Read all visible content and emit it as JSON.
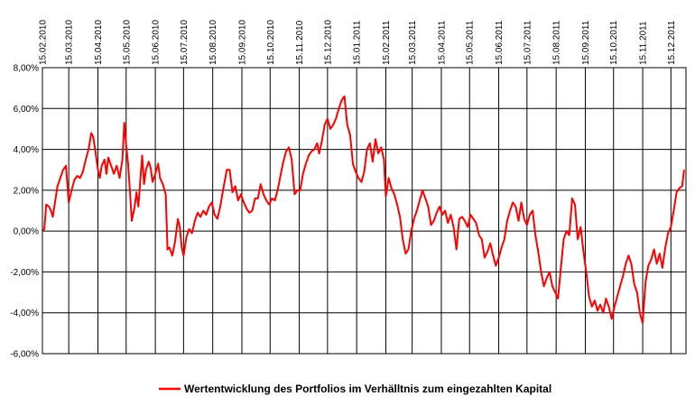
{
  "chart_data": {
    "type": "line",
    "title": "",
    "xlabel": "",
    "ylabel": "",
    "x_ticks": [
      "15.02.2010",
      "15.03.2010",
      "15.04.2010",
      "15.05.2010",
      "15.06.2010",
      "15.07.2010",
      "15.08.2010",
      "15.09.2010",
      "15.10.2010",
      "15.11.2010",
      "15.12.2010",
      "15.01.2011",
      "15.02.2011",
      "15.03.2011",
      "15.04.2011",
      "15.05.2011",
      "15.06.2011",
      "15.07.2011",
      "15.08.2011",
      "15.09.2011",
      "15.10.2011",
      "15.11.2011",
      "15.12.2011"
    ],
    "x_range": [
      "2010-02-15",
      "2011-12-31"
    ],
    "y_ticks": [
      "8,00%",
      "6,00%",
      "4,00%",
      "2,00%",
      "0,00%",
      "-2,00%",
      "-4,00%",
      "-6,00%"
    ],
    "ylim": [
      -6,
      8
    ],
    "y_unit": "%",
    "grid": {
      "x": true,
      "y": true
    },
    "legend_position": "bottom-center",
    "series": [
      {
        "name": "Wertentwicklung des Portfolios im Verhälltnis zum eingezahlten Kapital",
        "color": "#ff0000",
        "points": [
          [
            "2010-02-15",
            0.0
          ],
          [
            "2010-02-17",
            0.1
          ],
          [
            "2010-02-19",
            1.3
          ],
          [
            "2010-02-22",
            1.2
          ],
          [
            "2010-02-24",
            1.0
          ],
          [
            "2010-02-26",
            0.7
          ],
          [
            "2010-03-01",
            1.6
          ],
          [
            "2010-03-03",
            2.2
          ],
          [
            "2010-03-06",
            2.6
          ],
          [
            "2010-03-09",
            3.0
          ],
          [
            "2010-03-12",
            3.2
          ],
          [
            "2010-03-14",
            2.0
          ],
          [
            "2010-03-15",
            1.4
          ],
          [
            "2010-03-18",
            2.0
          ],
          [
            "2010-03-21",
            2.5
          ],
          [
            "2010-03-24",
            2.7
          ],
          [
            "2010-03-27",
            2.6
          ],
          [
            "2010-03-30",
            2.9
          ],
          [
            "2010-04-02",
            3.5
          ],
          [
            "2010-04-05",
            4.0
          ],
          [
            "2010-04-08",
            4.8
          ],
          [
            "2010-04-10",
            4.6
          ],
          [
            "2010-04-12",
            4.0
          ],
          [
            "2010-04-15",
            3.0
          ],
          [
            "2010-04-17",
            2.6
          ],
          [
            "2010-04-19",
            3.2
          ],
          [
            "2010-04-22",
            3.5
          ],
          [
            "2010-04-24",
            2.8
          ],
          [
            "2010-04-26",
            3.6
          ],
          [
            "2010-04-29",
            3.2
          ],
          [
            "2010-05-02",
            2.8
          ],
          [
            "2010-05-05",
            3.2
          ],
          [
            "2010-05-08",
            2.6
          ],
          [
            "2010-05-11",
            3.5
          ],
          [
            "2010-05-13",
            5.3
          ],
          [
            "2010-05-15",
            4.2
          ],
          [
            "2010-05-17",
            3.3
          ],
          [
            "2010-05-19",
            2.0
          ],
          [
            "2010-05-21",
            0.5
          ],
          [
            "2010-05-24",
            1.2
          ],
          [
            "2010-05-26",
            1.9
          ],
          [
            "2010-05-28",
            1.2
          ],
          [
            "2010-06-01",
            3.7
          ],
          [
            "2010-06-03",
            2.3
          ],
          [
            "2010-06-05",
            3.0
          ],
          [
            "2010-06-08",
            3.4
          ],
          [
            "2010-06-10",
            3.1
          ],
          [
            "2010-06-12",
            2.4
          ],
          [
            "2010-06-15",
            2.8
          ],
          [
            "2010-06-18",
            3.3
          ],
          [
            "2010-06-20",
            2.6
          ],
          [
            "2010-06-23",
            2.3
          ],
          [
            "2010-06-26",
            1.8
          ],
          [
            "2010-06-28",
            -0.9
          ],
          [
            "2010-06-30",
            -0.8
          ],
          [
            "2010-07-03",
            -1.2
          ],
          [
            "2010-07-06",
            -0.5
          ],
          [
            "2010-07-09",
            0.6
          ],
          [
            "2010-07-11",
            0.2
          ],
          [
            "2010-07-13",
            -0.8
          ],
          [
            "2010-07-15",
            -1.2
          ],
          [
            "2010-07-18",
            -0.3
          ],
          [
            "2010-07-21",
            0.1
          ],
          [
            "2010-07-24",
            -0.1
          ],
          [
            "2010-07-27",
            0.5
          ],
          [
            "2010-07-30",
            0.9
          ],
          [
            "2010-08-02",
            0.7
          ],
          [
            "2010-08-05",
            1.0
          ],
          [
            "2010-08-08",
            0.8
          ],
          [
            "2010-08-11",
            1.2
          ],
          [
            "2010-08-14",
            1.4
          ],
          [
            "2010-08-17",
            0.8
          ],
          [
            "2010-08-20",
            0.6
          ],
          [
            "2010-08-23",
            1.2
          ],
          [
            "2010-08-26",
            2.0
          ],
          [
            "2010-08-30",
            3.0
          ],
          [
            "2010-09-02",
            3.0
          ],
          [
            "2010-09-05",
            1.9
          ],
          [
            "2010-09-08",
            2.2
          ],
          [
            "2010-09-11",
            1.5
          ],
          [
            "2010-09-14",
            1.8
          ],
          [
            "2010-09-17",
            1.4
          ],
          [
            "2010-09-20",
            1.1
          ],
          [
            "2010-09-23",
            0.9
          ],
          [
            "2010-09-26",
            1.0
          ],
          [
            "2010-09-29",
            1.6
          ],
          [
            "2010-10-02",
            1.6
          ],
          [
            "2010-10-05",
            2.3
          ],
          [
            "2010-10-08",
            1.8
          ],
          [
            "2010-10-11",
            1.5
          ],
          [
            "2010-10-14",
            1.3
          ],
          [
            "2010-10-17",
            1.6
          ],
          [
            "2010-10-20",
            1.5
          ],
          [
            "2010-10-23",
            2.0
          ],
          [
            "2010-10-26",
            2.7
          ],
          [
            "2010-10-29",
            3.4
          ],
          [
            "2010-11-01",
            3.9
          ],
          [
            "2010-11-04",
            4.1
          ],
          [
            "2010-11-07",
            3.5
          ],
          [
            "2010-11-10",
            1.8
          ],
          [
            "2010-11-13",
            2.0
          ],
          [
            "2010-11-16",
            2.0
          ],
          [
            "2010-11-19",
            2.8
          ],
          [
            "2010-11-22",
            3.3
          ],
          [
            "2010-11-25",
            3.7
          ],
          [
            "2010-11-28",
            3.9
          ],
          [
            "2010-12-01",
            4.0
          ],
          [
            "2010-12-04",
            4.3
          ],
          [
            "2010-12-06",
            3.8
          ],
          [
            "2010-12-09",
            4.4
          ],
          [
            "2010-12-12",
            5.2
          ],
          [
            "2010-12-15",
            5.5
          ],
          [
            "2010-12-18",
            5.0
          ],
          [
            "2010-12-21",
            5.2
          ],
          [
            "2010-12-24",
            5.5
          ],
          [
            "2010-12-27",
            6.0
          ],
          [
            "2010-12-30",
            6.4
          ],
          [
            "2011-01-02",
            6.6
          ],
          [
            "2011-01-05",
            5.2
          ],
          [
            "2011-01-08",
            4.7
          ],
          [
            "2011-01-11",
            3.3
          ],
          [
            "2011-01-14",
            2.9
          ],
          [
            "2011-01-17",
            2.6
          ],
          [
            "2011-01-20",
            2.4
          ],
          [
            "2011-01-23",
            2.9
          ],
          [
            "2011-01-26",
            4.0
          ],
          [
            "2011-01-29",
            4.3
          ],
          [
            "2011-02-01",
            3.4
          ],
          [
            "2011-02-04",
            4.5
          ],
          [
            "2011-02-07",
            3.8
          ],
          [
            "2011-02-10",
            4.1
          ],
          [
            "2011-02-13",
            3.5
          ],
          [
            "2011-02-15",
            1.7
          ],
          [
            "2011-02-18",
            2.6
          ],
          [
            "2011-02-21",
            2.1
          ],
          [
            "2011-02-24",
            1.8
          ],
          [
            "2011-02-27",
            1.3
          ],
          [
            "2011-03-02",
            0.7
          ],
          [
            "2011-03-05",
            -0.4
          ],
          [
            "2011-03-08",
            -1.1
          ],
          [
            "2011-03-11",
            -0.9
          ],
          [
            "2011-03-14",
            0.0
          ],
          [
            "2011-03-17",
            0.6
          ],
          [
            "2011-03-20",
            1.0
          ],
          [
            "2011-03-23",
            1.5
          ],
          [
            "2011-03-26",
            2.0
          ],
          [
            "2011-03-29",
            1.6
          ],
          [
            "2011-04-01",
            1.2
          ],
          [
            "2011-04-04",
            0.3
          ],
          [
            "2011-04-07",
            0.5
          ],
          [
            "2011-04-10",
            0.9
          ],
          [
            "2011-04-13",
            1.2
          ],
          [
            "2011-04-16",
            0.8
          ],
          [
            "2011-04-19",
            1.0
          ],
          [
            "2011-04-22",
            0.4
          ],
          [
            "2011-04-25",
            0.8
          ],
          [
            "2011-04-28",
            0.2
          ],
          [
            "2011-05-01",
            -0.9
          ],
          [
            "2011-05-04",
            0.6
          ],
          [
            "2011-05-07",
            0.7
          ],
          [
            "2011-05-10",
            0.5
          ],
          [
            "2011-05-13",
            0.2
          ],
          [
            "2011-05-16",
            0.8
          ],
          [
            "2011-05-19",
            0.6
          ],
          [
            "2011-05-22",
            0.4
          ],
          [
            "2011-05-25",
            -0.2
          ],
          [
            "2011-05-28",
            -0.4
          ],
          [
            "2011-05-31",
            -1.3
          ],
          [
            "2011-06-03",
            -1.0
          ],
          [
            "2011-06-06",
            -0.6
          ],
          [
            "2011-06-09",
            -1.2
          ],
          [
            "2011-06-12",
            -1.7
          ],
          [
            "2011-06-15",
            -1.3
          ],
          [
            "2011-06-18",
            -0.8
          ],
          [
            "2011-06-21",
            -0.4
          ],
          [
            "2011-06-24",
            0.5
          ],
          [
            "2011-06-27",
            1.0
          ],
          [
            "2011-06-30",
            1.4
          ],
          [
            "2011-07-03",
            1.2
          ],
          [
            "2011-07-06",
            0.5
          ],
          [
            "2011-07-09",
            1.4
          ],
          [
            "2011-07-12",
            0.6
          ],
          [
            "2011-07-15",
            0.3
          ],
          [
            "2011-07-18",
            0.8
          ],
          [
            "2011-07-21",
            1.0
          ],
          [
            "2011-07-24",
            -0.2
          ],
          [
            "2011-07-27",
            -1.0
          ],
          [
            "2011-07-30",
            -2.0
          ],
          [
            "2011-08-02",
            -2.7
          ],
          [
            "2011-08-05",
            -2.3
          ],
          [
            "2011-08-08",
            -2.0
          ],
          [
            "2011-08-11",
            -2.7
          ],
          [
            "2011-08-14",
            -3.0
          ],
          [
            "2011-08-17",
            -3.3
          ],
          [
            "2011-08-20",
            -1.8
          ],
          [
            "2011-08-23",
            -0.4
          ],
          [
            "2011-08-26",
            0.0
          ],
          [
            "2011-08-29",
            -0.2
          ],
          [
            "2011-09-01",
            1.6
          ],
          [
            "2011-09-04",
            1.3
          ],
          [
            "2011-09-07",
            -0.4
          ],
          [
            "2011-09-10",
            0.2
          ],
          [
            "2011-09-13",
            -1.0
          ],
          [
            "2011-09-16",
            -2.0
          ],
          [
            "2011-09-19",
            -3.2
          ],
          [
            "2011-09-22",
            -3.7
          ],
          [
            "2011-09-25",
            -3.4
          ],
          [
            "2011-09-28",
            -3.9
          ],
          [
            "2011-10-01",
            -3.6
          ],
          [
            "2011-10-04",
            -4.0
          ],
          [
            "2011-10-07",
            -3.3
          ],
          [
            "2011-10-10",
            -3.7
          ],
          [
            "2011-10-13",
            -4.3
          ],
          [
            "2011-10-16",
            -3.7
          ],
          [
            "2011-10-19",
            -3.2
          ],
          [
            "2011-10-22",
            -2.7
          ],
          [
            "2011-10-25",
            -2.2
          ],
          [
            "2011-10-28",
            -1.6
          ],
          [
            "2011-10-31",
            -1.2
          ],
          [
            "2011-11-03",
            -1.6
          ],
          [
            "2011-11-06",
            -2.6
          ],
          [
            "2011-11-09",
            -3.0
          ],
          [
            "2011-11-12",
            -4.0
          ],
          [
            "2011-11-15",
            -4.5
          ],
          [
            "2011-11-18",
            -2.5
          ],
          [
            "2011-11-21",
            -1.7
          ],
          [
            "2011-11-24",
            -1.4
          ],
          [
            "2011-11-27",
            -0.9
          ],
          [
            "2011-11-30",
            -1.6
          ],
          [
            "2011-12-03",
            -1.1
          ],
          [
            "2011-12-06",
            -1.8
          ],
          [
            "2011-12-09",
            -0.8
          ],
          [
            "2011-12-12",
            -0.1
          ],
          [
            "2011-12-15",
            0.2
          ],
          [
            "2011-12-18",
            1.0
          ],
          [
            "2011-12-21",
            1.9
          ],
          [
            "2011-12-24",
            2.1
          ],
          [
            "2011-12-27",
            2.2
          ],
          [
            "2011-12-29",
            3.0
          ]
        ]
      }
    ]
  }
}
